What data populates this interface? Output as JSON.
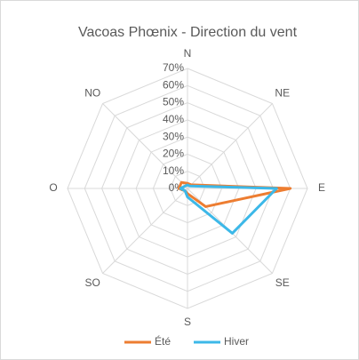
{
  "chart_data": {
    "type": "radar",
    "title": "Vacoas Phœnix - Direction du vent",
    "categories": [
      "N",
      "NE",
      "E",
      "SE",
      "S",
      "SO",
      "O",
      "NO"
    ],
    "series": [
      {
        "name": "Été",
        "color": "#ed7d31",
        "values": [
          3,
          3,
          60,
          15,
          3,
          2,
          5,
          5
        ]
      },
      {
        "name": "Hiver",
        "color": "#3cb8e8",
        "values": [
          2,
          2,
          52,
          37,
          5,
          2,
          4,
          2
        ]
      }
    ],
    "ylim": [
      0,
      70
    ],
    "yticks": [
      {
        "value": 0,
        "label": "0%"
      },
      {
        "value": 10,
        "label": "10%"
      },
      {
        "value": 20,
        "label": "20%"
      },
      {
        "value": 30,
        "label": "30%"
      },
      {
        "value": 40,
        "label": "40%"
      },
      {
        "value": 50,
        "label": "50%"
      },
      {
        "value": 60,
        "label": "60%"
      },
      {
        "value": 70,
        "label": "70%"
      }
    ],
    "grid": true,
    "legend": "bottom"
  }
}
